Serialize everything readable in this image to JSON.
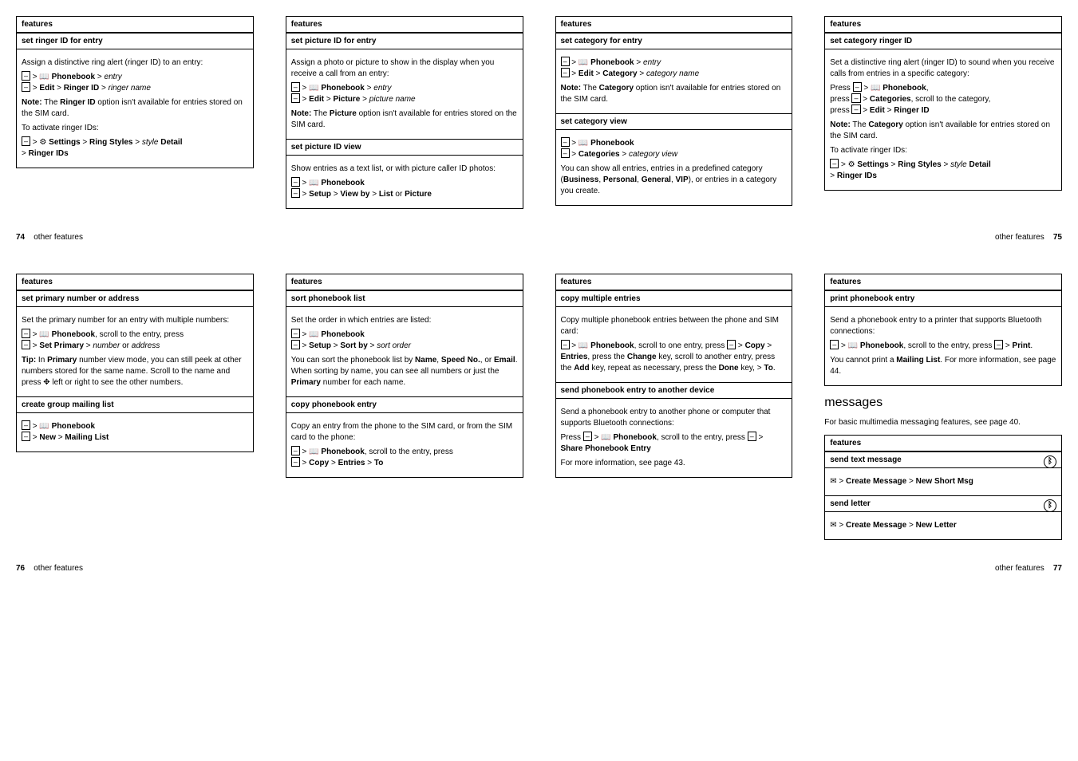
{
  "labels": {
    "features": "features",
    "other_features": "other features"
  },
  "pages": {
    "p74": "74",
    "p75": "75",
    "p76": "76",
    "p77": "77"
  },
  "col1": {
    "h1": "set ringer ID for entry",
    "b1": "Assign a distinctive ring alert (ringer ID) to an entry:",
    "line1a": "Phonebook",
    "line1b": "entry",
    "line2a": "Edit",
    "line2b": "Ringer ID",
    "line2c": "ringer name",
    "note1a": "Note:",
    "note1b": "Ringer ID",
    "note1c": " option isn't available for entries stored on the SIM card.",
    "b2": "To activate ringer IDs:",
    "line3a": "Settings",
    "line3b": "Ring Styles",
    "line3c": "style",
    "line3d": "Detail",
    "line4": "Ringer IDs"
  },
  "col2": {
    "h1": "set picture ID for entry",
    "b1": "Assign a photo or picture to show in the display when you receive a call from an entry:",
    "l1a": "Phonebook",
    "l1b": "entry",
    "l2a": "Edit",
    "l2b": "Picture",
    "l2c": "picture name",
    "n1a": "Note:",
    "n1b": "Picture",
    "n1c": " option isn't available for entries stored on the SIM card.",
    "h2": "set picture ID view",
    "b2": "Show entries as a text list, or with picture caller ID photos:",
    "l3": "Phonebook",
    "l4a": "Setup",
    "l4b": "View by",
    "l4c": "List",
    "l4d": "Picture"
  },
  "col3": {
    "h1": "set category for entry",
    "l1a": "Phonebook",
    "l1b": "entry",
    "l2a": "Edit",
    "l2b": "Category",
    "l2c": "category name",
    "n1a": "Note:",
    "n1b": "Category",
    "n1c": " option isn't available for entries stored on the SIM card.",
    "h2": "set category view",
    "l3": "Phonebook",
    "l4a": "Categories",
    "l4b": "category view",
    "b2a": "You can show all entries, entries in a predefined category (",
    "b2b": "Business",
    "b2c": "Personal",
    "b2d": "General",
    "b2e": "VIP",
    "b2f": "), or entries in a category you create."
  },
  "col4": {
    "h1": "set category ringer ID",
    "b1": "Set a distinctive ring alert (ringer ID) to sound when you receive calls from entries in a specific category:",
    "l1": "Phonebook",
    "l2a": "Categories",
    "l2b": ", scroll to the category,",
    "l3a": "Edit",
    "l3b": "Ringer ID",
    "n1a": "Note:",
    "n1b": "Category",
    "n1c": " option isn't available for entries stored on the SIM card.",
    "b2": "To activate ringer IDs:",
    "l4a": "Settings",
    "l4b": "Ring Styles",
    "l4c": "style",
    "l4d": "Detail",
    "l5": "Ringer IDs"
  },
  "col5": {
    "h1": "set primary number or address",
    "b1": "Set the primary number for an entry with multiple numbers:",
    "l1": "Phonebook",
    "l1b": ", scroll to the entry, press",
    "l2a": "Set Primary",
    "l2b": "number",
    "l2c": "address",
    "tip1": "Tip:",
    "tip2": "Primary",
    "tipbody": " number view mode, you can still peek at other numbers stored for the same name. Scroll to the name and press ",
    "tip3": " left or right to see the other numbers.",
    "h2": "create group mailing list",
    "l3": "Phonebook",
    "l4a": "New",
    "l4b": "Mailing List"
  },
  "col6": {
    "h1": "sort phonebook list",
    "b1": "Set the order in which entries are listed:",
    "l1": "Phonebook",
    "l2a": "Setup",
    "l2b": "Sort by",
    "l2c": "sort order",
    "b2a": "You can sort the phonebook list by ",
    "b2b": "Name",
    "b2c": "Speed No.",
    "b2d": "Email",
    "b2e": ". When sorting by name, you can see all numbers or just the ",
    "b2f": "Primary",
    "b2g": " number for each name.",
    "h2": "copy phonebook entry",
    "b3": "Copy an entry from the phone to the SIM card, or from the SIM card to the phone:",
    "l3": "Phonebook",
    "l3b": ", scroll to the entry, press",
    "l4a": "Copy",
    "l4b": "Entries",
    "l4c": "To"
  },
  "col7": {
    "h1": "copy multiple entries",
    "b1": "Copy multiple phonebook entries between the phone and SIM card:",
    "l1": "Phonebook",
    "l1b": ", scroll to one entry, press ",
    "l2a": "Copy",
    "l2b": "Entries",
    "l2c": ", press the ",
    "l3a": "Change",
    "l3b": " key, scroll to another entry, press the ",
    "l3c": "Add",
    "l3d": " key, repeat as necessary, press the ",
    "l3e": "Done",
    "l3f": " key, > ",
    "l3g": "To",
    "h2": "send phonebook entry to another device",
    "b2": "Send a phonebook entry to another phone or computer that supports Bluetooth connections:",
    "l4": "Phonebook",
    "l4b": ", scroll to the entry, press ",
    "l5": "Share Phonebook Entry",
    "b3": "For more information, see page 43."
  },
  "col8": {
    "h1": "print phonebook entry",
    "b1": "Send a phonebook entry to a printer that supports Bluetooth connections:",
    "l1": "Phonebook",
    "l1b": ", scroll to the entry, press ",
    "l2": "Print",
    "b2a": "You cannot print a ",
    "b2b": "Mailing List",
    "b2c": ". For more information, see page 44.",
    "msgh": "messages",
    "msgb": "For basic multimedia messaging features, see page 40.",
    "h2": "send text message",
    "l3a": "Create Message",
    "l3b": "New Short Msg",
    "h3": "send letter",
    "l4a": "Create Message",
    "l4b": "New Letter"
  }
}
